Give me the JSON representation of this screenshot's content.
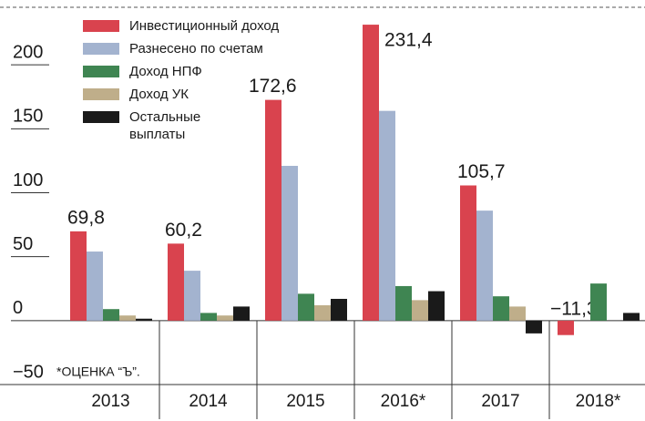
{
  "chart_data": {
    "type": "bar",
    "categories": [
      "2013",
      "2014",
      "2015",
      "2016*",
      "2017",
      "2018*"
    ],
    "series": [
      {
        "name": "Инвестиционный доход",
        "color": "#d9434e",
        "values": [
          69.8,
          60.2,
          172.6,
          231.4,
          105.7,
          -11.3
        ],
        "value_labels": [
          "69,8",
          "60,2",
          "172,6",
          "231,4",
          "105,7",
          "−11,3"
        ]
      },
      {
        "name": "Разнесено по счетам",
        "color": "#a3b3cf",
        "values": [
          54,
          39,
          121,
          164,
          86,
          null
        ]
      },
      {
        "name": "Доход НПФ",
        "color": "#3f8552",
        "values": [
          9,
          6,
          21,
          27,
          19,
          29
        ]
      },
      {
        "name": "Доход УК",
        "color": "#bfae8a",
        "values": [
          4,
          4,
          12,
          16,
          11,
          null
        ]
      },
      {
        "name": "Остальные выплаты",
        "color": "#1a1a1a",
        "values": [
          1.5,
          11,
          17,
          23,
          -10,
          6
        ]
      }
    ],
    "ylim": [
      -50,
      245
    ],
    "yticks": [
      {
        "value": -50,
        "label": "−50"
      },
      0,
      50,
      100,
      150,
      200
    ],
    "annotation": "*ОЦЕНКА “Ъ”.",
    "legend": "upper left"
  }
}
